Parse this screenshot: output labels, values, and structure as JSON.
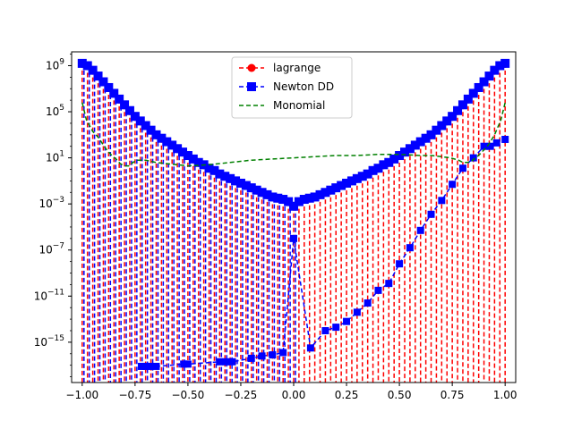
{
  "chart_data": {
    "type": "line",
    "yscale": "log",
    "xlim": [
      -1.05,
      1.05
    ],
    "ylim_exponents": [
      -18.5,
      10.2
    ],
    "x_ticks": [
      {
        "value": -1.0,
        "label": "−1.00"
      },
      {
        "value": -0.75,
        "label": "−0.75"
      },
      {
        "value": -0.5,
        "label": "−0.50"
      },
      {
        "value": -0.25,
        "label": "−0.25"
      },
      {
        "value": 0.0,
        "label": "0.00"
      },
      {
        "value": 0.25,
        "label": "0.25"
      },
      {
        "value": 0.5,
        "label": "0.50"
      },
      {
        "value": 0.75,
        "label": "0.75"
      },
      {
        "value": 1.0,
        "label": "1.00"
      }
    ],
    "y_ticks": [
      {
        "exp": 9,
        "label_base": "10",
        "label_exp": "9"
      },
      {
        "exp": 5,
        "label_base": "10",
        "label_exp": "5"
      },
      {
        "exp": 1,
        "label_base": "10",
        "label_exp": "1"
      },
      {
        "exp": -3,
        "label_base": "10",
        "label_exp": "−3"
      },
      {
        "exp": -7,
        "label_base": "10",
        "label_exp": "−7"
      },
      {
        "exp": -11,
        "label_base": "10",
        "label_exp": "−11"
      },
      {
        "exp": -15,
        "label_base": "10",
        "label_exp": "−15"
      }
    ],
    "legend": {
      "position": "upper center",
      "entries": [
        {
          "label": "lagrange",
          "color": "#ff0000",
          "marker": "circle",
          "linestyle": "dashed"
        },
        {
          "label": "Newton DD",
          "color": "#0000ff",
          "marker": "square",
          "linestyle": "dashed"
        },
        {
          "label": "Monomial",
          "color": "#008000",
          "marker": "none",
          "linestyle": "dashed"
        }
      ]
    },
    "series": [
      {
        "name": "lagrange",
        "color": "#ff0000",
        "x_start": -1.0,
        "x_end": 1.0,
        "n_points": 81,
        "description_of_values": "|error| at 81 equispaced nodes, drawn as dashed stems to the bottom and circle markers",
        "log10_abs_y": [
          9.2,
          9.0,
          8.6,
          8.1,
          7.6,
          7.1,
          6.6,
          6.1,
          5.6,
          5.1,
          4.6,
          4.2,
          3.8,
          3.4,
          3.0,
          2.7,
          2.4,
          2.1,
          1.8,
          1.5,
          1.2,
          0.9,
          0.6,
          0.4,
          0.1,
          -0.1,
          -0.4,
          -0.6,
          -0.8,
          -1.0,
          -1.2,
          -1.4,
          -1.6,
          -1.8,
          -2.0,
          -2.2,
          -2.4,
          -2.5,
          -2.6,
          -2.8,
          -3.2,
          -2.8,
          -2.6,
          -2.5,
          -2.4,
          -2.2,
          -2.0,
          -1.8,
          -1.6,
          -1.4,
          -1.2,
          -1.0,
          -0.8,
          -0.6,
          -0.4,
          -0.1,
          0.1,
          0.4,
          0.6,
          0.9,
          1.2,
          1.5,
          1.8,
          2.1,
          2.4,
          2.7,
          3.0,
          3.4,
          3.8,
          4.2,
          4.6,
          5.1,
          5.6,
          6.1,
          6.6,
          7.1,
          7.6,
          8.1,
          8.6,
          9.0,
          9.2
        ]
      },
      {
        "name": "Newton DD",
        "color": "#0000ff",
        "x_start": -1.0,
        "x_end": 1.0,
        "n_points": 81,
        "description_of_values": "dashed line through square markers; on the left half it tracks lagrange, on the right half it drops to small values; NaN marks gaps",
        "log10_abs_y": [
          9.2,
          9.0,
          8.6,
          8.1,
          7.6,
          7.1,
          6.6,
          6.1,
          5.6,
          5.1,
          4.6,
          4.2,
          3.8,
          3.4,
          3.0,
          2.7,
          2.4,
          2.1,
          1.8,
          1.5,
          1.2,
          0.9,
          0.6,
          0.4,
          0.1,
          -0.1,
          -0.4,
          -0.6,
          -0.8,
          -1.0,
          -1.2,
          -1.4,
          -1.6,
          -1.8,
          -2.0,
          -2.2,
          -2.4,
          -2.5,
          -2.6,
          -2.8,
          -3.2,
          -2.8,
          -2.6,
          -2.5,
          -2.4,
          -2.2,
          -2.0,
          -1.8,
          -1.6,
          -1.4,
          -1.2,
          -1.0,
          -0.8,
          -0.6,
          -0.4,
          -0.1,
          0.1,
          0.4,
          0.6,
          0.9,
          1.2,
          1.5,
          1.8,
          2.1,
          2.4,
          2.7,
          3.0,
          3.4,
          3.8,
          4.2,
          4.6,
          5.1,
          5.6,
          6.1,
          6.6,
          7.1,
          7.6,
          8.1,
          8.6,
          9.0,
          9.2
        ],
        "lower_markers": [
          {
            "x": -0.72,
            "log10": -17.1
          },
          {
            "x": -0.7,
            "log10": -17.1
          },
          {
            "x": -0.68,
            "log10": -17.1
          },
          {
            "x": -0.65,
            "log10": -17.1
          },
          {
            "x": -0.52,
            "log10": -16.9
          },
          {
            "x": -0.5,
            "log10": -16.9
          },
          {
            "x": -0.35,
            "log10": -16.7
          },
          {
            "x": -0.32,
            "log10": -16.7
          },
          {
            "x": -0.29,
            "log10": -16.7
          },
          {
            "x": -0.2,
            "log10": -16.4
          },
          {
            "x": -0.15,
            "log10": -16.2
          },
          {
            "x": -0.1,
            "log10": -16.1
          },
          {
            "x": -0.05,
            "log10": -15.9
          },
          {
            "x": 0.0,
            "log10": -6.0
          },
          {
            "x": 0.08,
            "log10": -15.5
          },
          {
            "x": 0.15,
            "log10": -14.0
          },
          {
            "x": 0.2,
            "log10": -13.7
          },
          {
            "x": 0.25,
            "log10": -13.2
          },
          {
            "x": 0.3,
            "log10": -12.4
          },
          {
            "x": 0.35,
            "log10": -11.6
          },
          {
            "x": 0.4,
            "log10": -10.5
          },
          {
            "x": 0.45,
            "log10": -9.9
          },
          {
            "x": 0.5,
            "log10": -8.2
          },
          {
            "x": 0.55,
            "log10": -6.8
          },
          {
            "x": 0.6,
            "log10": -5.3
          },
          {
            "x": 0.65,
            "log10": -3.9
          },
          {
            "x": 0.7,
            "log10": -2.7
          },
          {
            "x": 0.75,
            "log10": -1.3
          },
          {
            "x": 0.8,
            "log10": 0.1
          },
          {
            "x": 0.85,
            "log10": 1.0
          },
          {
            "x": 0.9,
            "log10": 2.0
          },
          {
            "x": 0.93,
            "log10": 2.0
          },
          {
            "x": 0.96,
            "log10": 2.3
          },
          {
            "x": 1.0,
            "log10": 2.6
          }
        ]
      },
      {
        "name": "Monomial",
        "color": "#008000",
        "x": [
          -1.0,
          -0.98,
          -0.95,
          -0.92,
          -0.9,
          -0.88,
          -0.86,
          -0.84,
          -0.82,
          -0.8,
          -0.78,
          -0.76,
          -0.74,
          -0.7,
          -0.65,
          -0.6,
          -0.5,
          -0.4,
          -0.3,
          -0.2,
          -0.1,
          0.0,
          0.1,
          0.2,
          0.3,
          0.4,
          0.5,
          0.6,
          0.65,
          0.7,
          0.74,
          0.76,
          0.78,
          0.8,
          0.82,
          0.84,
          0.86,
          0.88,
          0.9,
          0.92,
          0.95,
          0.98,
          1.0
        ],
        "log10_abs_y": [
          5.8,
          4.3,
          3.3,
          2.7,
          2.1,
          1.6,
          1.2,
          0.9,
          0.5,
          0.3,
          0.3,
          0.6,
          0.8,
          0.8,
          0.6,
          0.5,
          0.3,
          0.4,
          0.6,
          0.8,
          0.9,
          1.0,
          1.1,
          1.2,
          1.2,
          1.3,
          1.3,
          1.2,
          1.2,
          1.1,
          1.0,
          0.9,
          0.8,
          0.6,
          0.6,
          0.7,
          1.0,
          1.3,
          1.7,
          2.1,
          3.0,
          4.3,
          5.8
        ]
      }
    ]
  }
}
